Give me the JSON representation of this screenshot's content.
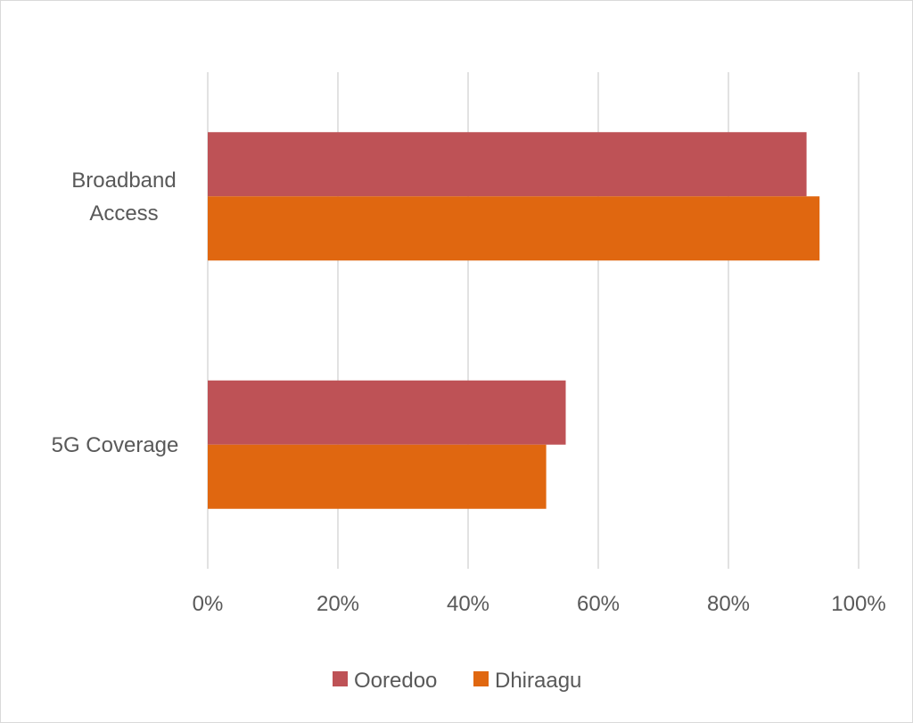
{
  "chart_data": {
    "type": "bar",
    "orientation": "horizontal",
    "categories": [
      "Broadband Access",
      "5G Coverage"
    ],
    "category_lines": [
      [
        "Broadband",
        "Access"
      ],
      [
        "5G Coverage"
      ]
    ],
    "series": [
      {
        "name": "Ooredoo",
        "color": "#BE5256",
        "values": [
          92,
          55
        ]
      },
      {
        "name": "Dhiraagu",
        "color": "#E06710",
        "values": [
          94,
          52
        ]
      }
    ],
    "xlim": [
      0,
      100
    ],
    "x_ticks": [
      0,
      20,
      40,
      60,
      80,
      100
    ],
    "x_tick_labels": [
      "0%",
      "20%",
      "40%",
      "60%",
      "80%",
      "100%"
    ],
    "grid": true,
    "legend_position": "bottom"
  }
}
